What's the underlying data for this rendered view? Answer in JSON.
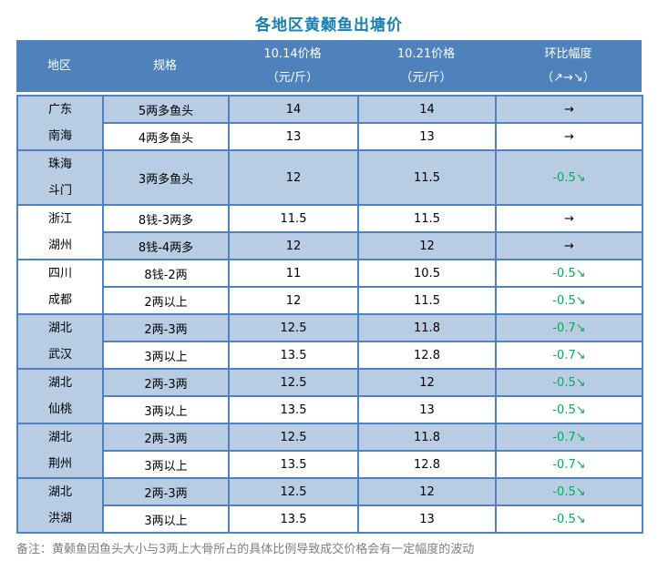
{
  "title": "各地区黄颡鱼出塘价",
  "note": "备注：黄颡鱼因鱼头大小与3两上大骨所占的具体比例导致成交价格会有一定幅度的波动",
  "colors": {
    "header_bg": "#4F81BD",
    "row_highlight": "#B8CCE4",
    "border": "#4F81BD",
    "title_text": "#1780B0",
    "change_down": "#00B050",
    "note_gray": "#808080"
  },
  "table": {
    "columns": [
      {
        "label": "地区",
        "sub": ""
      },
      {
        "label": "规格",
        "sub": ""
      },
      {
        "label": "10.14价格",
        "sub": "（元/斤）"
      },
      {
        "label": "10.21价格",
        "sub": "（元/斤）"
      },
      {
        "label": "环比幅度",
        "sub": "（↗→↘）"
      }
    ],
    "groups": [
      {
        "region_lines": [
          "广东",
          "南海"
        ],
        "region_bg": "highlight",
        "rows": [
          {
            "spec": "5两多鱼头",
            "p1": "14",
            "p2": "14",
            "change": "→",
            "trend": "flat",
            "bg": "highlight"
          },
          {
            "spec": "4两多鱼头",
            "p1": "13",
            "p2": "13",
            "change": "→",
            "trend": "flat",
            "bg": "plain"
          }
        ]
      },
      {
        "region_lines": [
          "珠海",
          "斗门"
        ],
        "region_bg": "highlight",
        "rows": [
          {
            "spec": "3两多鱼头",
            "p1": "12",
            "p2": "11.5",
            "change": "-0.5↘",
            "trend": "down",
            "bg": "highlight",
            "tall": true
          }
        ]
      },
      {
        "region_lines": [
          "浙江",
          "湖州"
        ],
        "region_bg": "plain",
        "rows": [
          {
            "spec": "8钱-3两多",
            "p1": "11.5",
            "p2": "11.5",
            "change": "→",
            "trend": "flat",
            "bg": "plain"
          },
          {
            "spec": "8钱-4两多",
            "p1": "12",
            "p2": "12",
            "change": "→",
            "trend": "flat",
            "bg": "highlight"
          }
        ]
      },
      {
        "region_lines": [
          "四川",
          "成都"
        ],
        "region_bg": "plain",
        "rows": [
          {
            "spec": "8钱-2两",
            "p1": "11",
            "p2": "10.5",
            "change": "-0.5↘",
            "trend": "down",
            "bg": "plain"
          },
          {
            "spec": "2两以上",
            "p1": "12",
            "p2": "11.5",
            "change": "-0.5↘",
            "trend": "down",
            "bg": "plain"
          }
        ]
      },
      {
        "region_lines": [
          "湖北",
          "武汉"
        ],
        "region_bg": "highlight",
        "rows": [
          {
            "spec": "2两-3两",
            "p1": "12.5",
            "p2": "11.8",
            "change": "-0.7↘",
            "trend": "down",
            "bg": "highlight"
          },
          {
            "spec": "3两以上",
            "p1": "13.5",
            "p2": "12.8",
            "change": "-0.7↘",
            "trend": "down",
            "bg": "plain"
          }
        ]
      },
      {
        "region_lines": [
          "湖北",
          "仙桃"
        ],
        "region_bg": "highlight",
        "rows": [
          {
            "spec": "2两-3两",
            "p1": "12.5",
            "p2": "12",
            "change": "-0.5↘",
            "trend": "down",
            "bg": "highlight"
          },
          {
            "spec": "3两以上",
            "p1": "13.5",
            "p2": "13",
            "change": "-0.5↘",
            "trend": "down",
            "bg": "plain"
          }
        ]
      },
      {
        "region_lines": [
          "湖北",
          "荆州"
        ],
        "region_bg": "highlight",
        "rows": [
          {
            "spec": "2两-3两",
            "p1": "12.5",
            "p2": "11.8",
            "change": "-0.7↘",
            "trend": "down",
            "bg": "highlight"
          },
          {
            "spec": "3两以上",
            "p1": "13.5",
            "p2": "12.8",
            "change": "-0.7↘",
            "trend": "down",
            "bg": "plain"
          }
        ]
      },
      {
        "region_lines": [
          "湖北",
          "洪湖"
        ],
        "region_bg": "highlight",
        "rows": [
          {
            "spec": "2两-3两",
            "p1": "12.5",
            "p2": "12",
            "change": "-0.5↘",
            "trend": "down",
            "bg": "highlight"
          },
          {
            "spec": "3两以上",
            "p1": "13.5",
            "p2": "13",
            "change": "-0.5↘",
            "trend": "down",
            "bg": "plain"
          }
        ]
      }
    ]
  }
}
